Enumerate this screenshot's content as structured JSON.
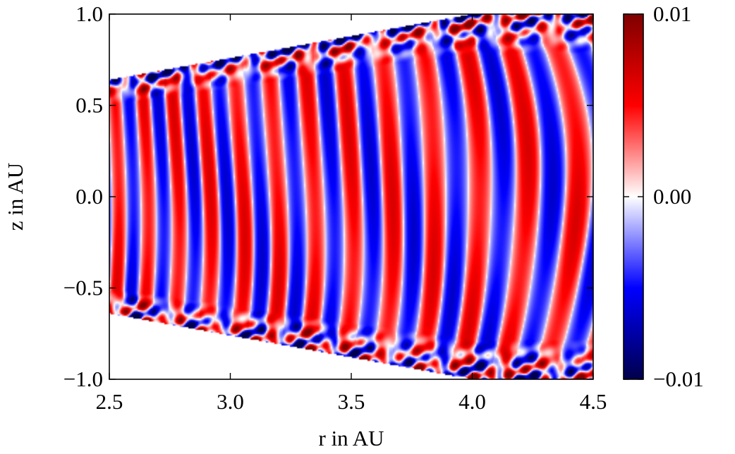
{
  "chart_data": {
    "type": "heatmap",
    "title": "",
    "xlabel": "r in AU",
    "ylabel": "z in AU",
    "xlim": [
      2.5,
      4.5
    ],
    "ylim": [
      -1.0,
      1.0
    ],
    "x_ticks": [
      2.5,
      3.0,
      3.5,
      4.0,
      4.5
    ],
    "x_tick_labels": [
      "2.5",
      "3.0",
      "3.5",
      "4.0",
      "4.5"
    ],
    "y_ticks": [
      1.0,
      0.5,
      0.0,
      -0.5,
      -1.0
    ],
    "y_tick_labels": [
      "1.0",
      "0.5",
      "0.0",
      "−0.5",
      "−1.0"
    ],
    "colorbar": {
      "range": [
        -0.01,
        0.01
      ],
      "ticks": [
        0.01,
        0.0,
        -0.01
      ],
      "tick_labels": [
        "0.01",
        "0.00",
        "−0.01"
      ],
      "colormap": "seismic",
      "colors": [
        "#00004c",
        "#0000ff",
        "#ffffff",
        "#ff0000",
        "#7f0000"
      ]
    },
    "wedge_boundary": {
      "upper": [
        [
          2.5,
          0.64
        ],
        [
          4.0,
          1.0
        ],
        [
          4.5,
          1.0
        ]
      ],
      "lower": [
        [
          2.5,
          -0.64
        ],
        [
          4.0,
          -1.0
        ],
        [
          4.5,
          -1.0
        ]
      ]
    },
    "pattern": "vertical alternating red/blue bands, bands widen with r; disturbed turbulent structure near the upper and lower wedge edges"
  }
}
